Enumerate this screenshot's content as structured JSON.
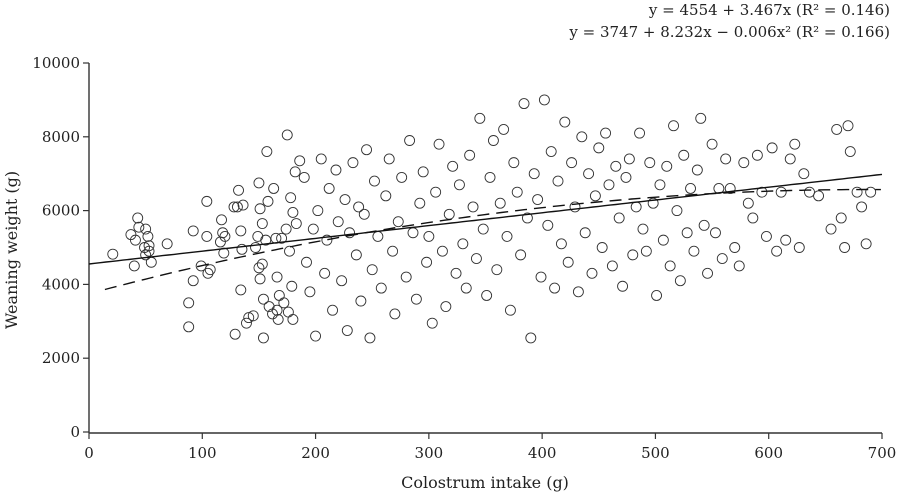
{
  "chart_data": {
    "type": "scatter",
    "title": "",
    "xlabel": "Colostrum intake (g)",
    "ylabel": "Weaning weight (g)",
    "xlim": [
      0,
      700
    ],
    "ylim": [
      0,
      10000
    ],
    "xticks": [
      "0",
      "100",
      "200",
      "300",
      "400",
      "500",
      "600",
      "700"
    ],
    "yticks": [
      "0",
      "2000",
      "4000",
      "6000",
      "8000",
      "10000"
    ],
    "grid": false,
    "annotations": {
      "linear_eq": "y = 4554 + 3.467x (R² = 0.146)",
      "quadratic_eq": "y = 3747 + 8.232x − 0.006x² (R² = 0.166)"
    },
    "fits": [
      {
        "name": "linear",
        "style": "solid",
        "intercept": 4554,
        "b1": 3.467,
        "b2": 0,
        "r2": 0.146,
        "xrange": [
          0,
          700
        ]
      },
      {
        "name": "quadratic",
        "style": "dashed",
        "intercept": 3747,
        "b1": 8.232,
        "b2": -0.006,
        "r2": 0.166,
        "xrange": [
          14,
          700
        ]
      }
    ],
    "points": [
      [
        21,
        4820
      ],
      [
        37,
        5350
      ],
      [
        40,
        4500
      ],
      [
        41,
        5200
      ],
      [
        43,
        5800
      ],
      [
        44,
        5550
      ],
      [
        49,
        5000
      ],
      [
        50,
        5500
      ],
      [
        50,
        4800
      ],
      [
        52,
        5300
      ],
      [
        53,
        4900
      ],
      [
        53,
        5050
      ],
      [
        55,
        4600
      ],
      [
        69,
        5100
      ],
      [
        88,
        2850
      ],
      [
        88,
        3500
      ],
      [
        92,
        5450
      ],
      [
        92,
        4100
      ],
      [
        99,
        4500
      ],
      [
        104,
        6250
      ],
      [
        104,
        5300
      ],
      [
        105,
        4300
      ],
      [
        107,
        4400
      ],
      [
        116,
        5150
      ],
      [
        117,
        5750
      ],
      [
        118,
        5400
      ],
      [
        119,
        4850
      ],
      [
        120,
        5300
      ],
      [
        128,
        6100
      ],
      [
        129,
        2650
      ],
      [
        131,
        6100
      ],
      [
        132,
        6550
      ],
      [
        134,
        5450
      ],
      [
        134,
        3850
      ],
      [
        135,
        4950
      ],
      [
        136,
        6150
      ],
      [
        139,
        2950
      ],
      [
        141,
        3100
      ],
      [
        145,
        3150
      ],
      [
        147,
        5000
      ],
      [
        149,
        5300
      ],
      [
        150,
        6750
      ],
      [
        150,
        4450
      ],
      [
        151,
        4150
      ],
      [
        151,
        6050
      ],
      [
        153,
        5650
      ],
      [
        153,
        4550
      ],
      [
        154,
        3600
      ],
      [
        154,
        2550
      ],
      [
        156,
        5200
      ],
      [
        157,
        7600
      ],
      [
        158,
        6250
      ],
      [
        159,
        3400
      ],
      [
        162,
        3200
      ],
      [
        163,
        6600
      ],
      [
        165,
        5250
      ],
      [
        166,
        3300
      ],
      [
        166,
        4200
      ],
      [
        167,
        3050
      ],
      [
        168,
        3700
      ],
      [
        170,
        5250
      ],
      [
        172,
        3500
      ],
      [
        174,
        5500
      ],
      [
        175,
        8050
      ],
      [
        176,
        3250
      ],
      [
        177,
        4900
      ],
      [
        178,
        6350
      ],
      [
        179,
        3950
      ],
      [
        180,
        3050
      ],
      [
        180,
        5950
      ],
      [
        182,
        7050
      ],
      [
        183,
        5650
      ],
      [
        186,
        7350
      ],
      [
        190,
        6900
      ],
      [
        192,
        4600
      ],
      [
        195,
        3800
      ],
      [
        198,
        5500
      ],
      [
        200,
        2600
      ],
      [
        202,
        6000
      ],
      [
        205,
        7400
      ],
      [
        208,
        4300
      ],
      [
        210,
        5200
      ],
      [
        212,
        6600
      ],
      [
        215,
        3300
      ],
      [
        218,
        7100
      ],
      [
        220,
        5700
      ],
      [
        223,
        4100
      ],
      [
        226,
        6300
      ],
      [
        228,
        2750
      ],
      [
        230,
        5400
      ],
      [
        233,
        7300
      ],
      [
        236,
        4800
      ],
      [
        238,
        6100
      ],
      [
        240,
        3550
      ],
      [
        243,
        5900
      ],
      [
        245,
        7650
      ],
      [
        248,
        2550
      ],
      [
        250,
        4400
      ],
      [
        252,
        6800
      ],
      [
        255,
        5300
      ],
      [
        258,
        3900
      ],
      [
        262,
        6400
      ],
      [
        265,
        7400
      ],
      [
        268,
        4900
      ],
      [
        270,
        3200
      ],
      [
        273,
        5700
      ],
      [
        276,
        6900
      ],
      [
        280,
        4200
      ],
      [
        283,
        7900
      ],
      [
        286,
        5400
      ],
      [
        289,
        3600
      ],
      [
        292,
        6200
      ],
      [
        295,
        7050
      ],
      [
        298,
        4600
      ],
      [
        300,
        5300
      ],
      [
        303,
        2950
      ],
      [
        306,
        6500
      ],
      [
        309,
        7800
      ],
      [
        312,
        4900
      ],
      [
        315,
        3400
      ],
      [
        318,
        5900
      ],
      [
        321,
        7200
      ],
      [
        324,
        4300
      ],
      [
        327,
        6700
      ],
      [
        330,
        5100
      ],
      [
        333,
        3900
      ],
      [
        336,
        7500
      ],
      [
        339,
        6100
      ],
      [
        342,
        4700
      ],
      [
        345,
        8500
      ],
      [
        348,
        5500
      ],
      [
        351,
        3700
      ],
      [
        354,
        6900
      ],
      [
        357,
        7900
      ],
      [
        360,
        4400
      ],
      [
        363,
        6200
      ],
      [
        366,
        8200
      ],
      [
        369,
        5300
      ],
      [
        372,
        3300
      ],
      [
        375,
        7300
      ],
      [
        378,
        6500
      ],
      [
        381,
        4800
      ],
      [
        384,
        8900
      ],
      [
        387,
        5800
      ],
      [
        390,
        2550
      ],
      [
        393,
        7000
      ],
      [
        396,
        6300
      ],
      [
        399,
        4200
      ],
      [
        402,
        9000
      ],
      [
        405,
        5600
      ],
      [
        408,
        7600
      ],
      [
        411,
        3900
      ],
      [
        414,
        6800
      ],
      [
        417,
        5100
      ],
      [
        420,
        8400
      ],
      [
        423,
        4600
      ],
      [
        426,
        7300
      ],
      [
        429,
        6100
      ],
      [
        432,
        3800
      ],
      [
        435,
        8000
      ],
      [
        438,
        5400
      ],
      [
        441,
        7000
      ],
      [
        444,
        4300
      ],
      [
        447,
        6400
      ],
      [
        450,
        7700
      ],
      [
        453,
        5000
      ],
      [
        456,
        8100
      ],
      [
        459,
        6700
      ],
      [
        462,
        4500
      ],
      [
        465,
        7200
      ],
      [
        468,
        5800
      ],
      [
        471,
        3950
      ],
      [
        474,
        6900
      ],
      [
        477,
        7400
      ],
      [
        480,
        4800
      ],
      [
        483,
        6100
      ],
      [
        486,
        8100
      ],
      [
        489,
        5500
      ],
      [
        492,
        4900
      ],
      [
        495,
        7300
      ],
      [
        498,
        6200
      ],
      [
        501,
        3700
      ],
      [
        504,
        6700
      ],
      [
        507,
        5200
      ],
      [
        510,
        7200
      ],
      [
        513,
        4500
      ],
      [
        516,
        8300
      ],
      [
        519,
        6000
      ],
      [
        522,
        4100
      ],
      [
        525,
        7500
      ],
      [
        528,
        5400
      ],
      [
        531,
        6600
      ],
      [
        534,
        4900
      ],
      [
        537,
        7100
      ],
      [
        540,
        8500
      ],
      [
        543,
        5600
      ],
      [
        546,
        4300
      ],
      [
        550,
        7800
      ],
      [
        553,
        5400
      ],
      [
        556,
        6600
      ],
      [
        559,
        4700
      ],
      [
        562,
        7400
      ],
      [
        566,
        6600
      ],
      [
        570,
        5000
      ],
      [
        574,
        4500
      ],
      [
        578,
        7300
      ],
      [
        582,
        6200
      ],
      [
        586,
        5800
      ],
      [
        590,
        7500
      ],
      [
        594,
        6500
      ],
      [
        598,
        5300
      ],
      [
        603,
        7700
      ],
      [
        607,
        4900
      ],
      [
        611,
        6500
      ],
      [
        615,
        5200
      ],
      [
        619,
        7400
      ],
      [
        623,
        7800
      ],
      [
        627,
        5000
      ],
      [
        631,
        7000
      ],
      [
        636,
        6500
      ],
      [
        644,
        6400
      ],
      [
        655,
        5500
      ],
      [
        660,
        8200
      ],
      [
        664,
        5800
      ],
      [
        667,
        5000
      ],
      [
        670,
        8300
      ],
      [
        672,
        7600
      ],
      [
        678,
        6500
      ],
      [
        682,
        6100
      ],
      [
        686,
        5100
      ],
      [
        690,
        6500
      ]
    ]
  }
}
